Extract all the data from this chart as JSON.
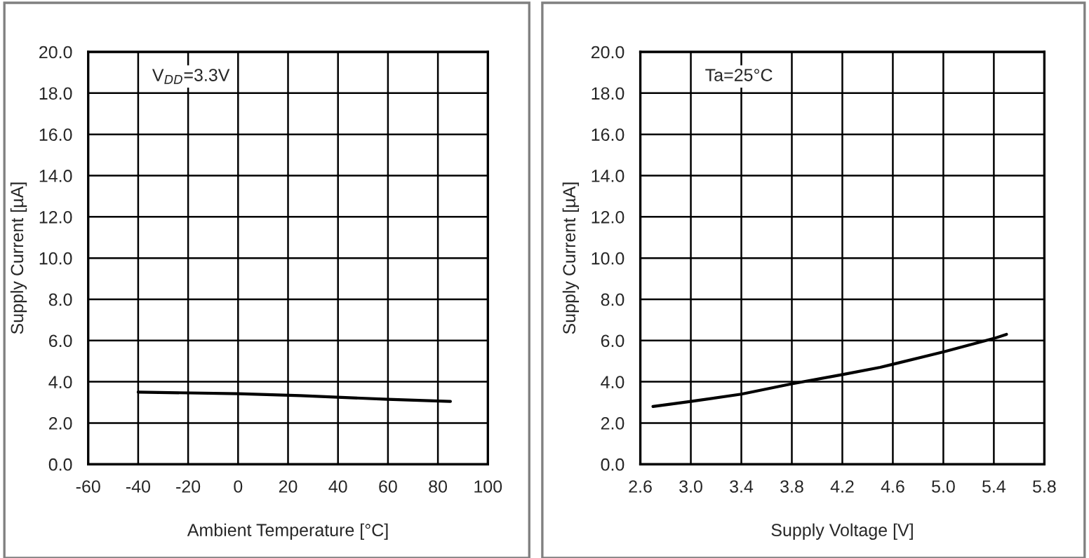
{
  "chart_data": [
    {
      "type": "line",
      "xlabel": "Ambient Temperature [°C]",
      "ylabel": "Supply Current [µA]",
      "annotations": [
        "V$_{DD}$=3.3V"
      ],
      "x": [
        -40,
        0,
        25,
        60,
        85
      ],
      "series": [
        {
          "color": "#000000",
          "values": [
            3.5,
            3.42,
            3.33,
            3.15,
            3.05
          ]
        }
      ],
      "xlim": [
        -60,
        100
      ],
      "xticks": [
        -60,
        -40,
        -20,
        0,
        20,
        40,
        60,
        80,
        100
      ],
      "ylim": [
        0,
        20
      ],
      "yticks": [
        {
          "value": 0,
          "label": "0.0"
        },
        {
          "value": 2,
          "label": "2.0"
        },
        {
          "value": 4,
          "label": "4.0"
        },
        {
          "value": 6,
          "label": "6.0"
        },
        {
          "value": 8,
          "label": "8.0"
        },
        {
          "value": 10,
          "label": "10.0"
        },
        {
          "value": 12,
          "label": "12.0"
        },
        {
          "value": 14,
          "label": "14.0"
        },
        {
          "value": 16,
          "label": "16.0"
        },
        {
          "value": 18,
          "label": "18.0"
        },
        {
          "value": 20,
          "label": "20.0"
        }
      ],
      "grid": true,
      "marker": "none",
      "line_style": "solid"
    },
    {
      "type": "line",
      "xlabel": "Supply Voltage [V]",
      "ylabel": "Supply Current [µA]",
      "annotations": [
        "Ta=25°C"
      ],
      "x": [
        2.7,
        3.0,
        3.4,
        3.8,
        4.2,
        4.5,
        4.6,
        5.0,
        5.4,
        5.5
      ],
      "series": [
        {
          "color": "#000000",
          "values": [
            2.8,
            3.05,
            3.4,
            3.9,
            4.35,
            4.7,
            4.85,
            5.45,
            6.1,
            6.3
          ]
        }
      ],
      "xlim": [
        2.6,
        5.8
      ],
      "xticks": [
        {
          "value": 2.6,
          "label": "2.6"
        },
        {
          "value": 3.0,
          "label": "3.0"
        },
        {
          "value": 3.4,
          "label": "3.4"
        },
        {
          "value": 3.8,
          "label": "3.8"
        },
        {
          "value": 4.2,
          "label": "4.2"
        },
        {
          "value": 4.6,
          "label": "4.6"
        },
        {
          "value": 5.0,
          "label": "5.0"
        },
        {
          "value": 5.4,
          "label": "5.4"
        },
        {
          "value": 5.8,
          "label": "5.8"
        }
      ],
      "ylim": [
        0,
        20
      ],
      "yticks": [
        {
          "value": 0,
          "label": "0.0"
        },
        {
          "value": 2,
          "label": "2.0"
        },
        {
          "value": 4,
          "label": "4.0"
        },
        {
          "value": 6,
          "label": "6.0"
        },
        {
          "value": 8,
          "label": "8.0"
        },
        {
          "value": 10,
          "label": "10.0"
        },
        {
          "value": 12,
          "label": "12.0"
        },
        {
          "value": 14,
          "label": "14.0"
        },
        {
          "value": 16,
          "label": "16.0"
        },
        {
          "value": 18,
          "label": "18.0"
        },
        {
          "value": 20,
          "label": "20.0"
        }
      ],
      "grid": true,
      "marker": "none",
      "line_style": "solid"
    }
  ]
}
